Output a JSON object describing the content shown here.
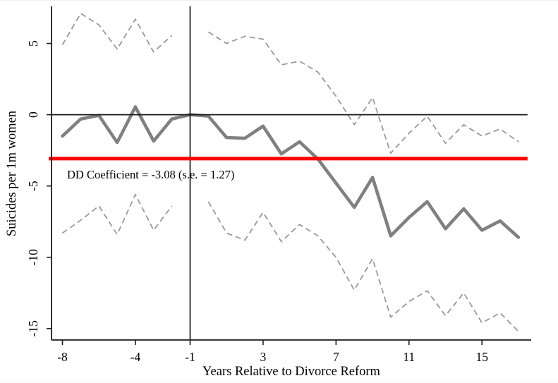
{
  "chart_data": {
    "type": "line",
    "title": "",
    "xlabel": "Years Relative to Divorce Reform",
    "ylabel": "Suicides per 1m women",
    "annotation": "DD Coefficient = -3.08 (s.e. = 1.27)",
    "x_ticks": [
      -8,
      -4,
      -1,
      3,
      7,
      11,
      15
    ],
    "y_ticks": [
      5,
      0,
      -5,
      -10,
      -15
    ],
    "xlim": [
      -8.6,
      17.7
    ],
    "ylim": [
      -15.8,
      7.6
    ],
    "grid": false,
    "legend": "none",
    "reference_lines": {
      "zero_line_y": 0,
      "event_line_x": -1,
      "dd_line_y": -3.08
    },
    "colors": {
      "estimate": "#808080",
      "ci": "#999999",
      "dd_line": "#ff0000",
      "axis": "#1a1a1a"
    },
    "series": [
      {
        "name": "ci-upper-pre",
        "role": "confidence-interval-upper",
        "style": "dashed",
        "x": [
          -8,
          -7,
          -6,
          -5,
          -4,
          -3,
          -2
        ],
        "y": [
          4.9,
          7.1,
          6.3,
          4.6,
          6.7,
          4.4,
          5.55
        ]
      },
      {
        "name": "ci-lower-pre",
        "role": "confidence-interval-lower",
        "style": "dashed",
        "x": [
          -8,
          -7,
          -6,
          -5,
          -4,
          -3,
          -2
        ],
        "y": [
          -8.3,
          -7.4,
          -6.4,
          -8.4,
          -5.6,
          -8.1,
          -6.4
        ]
      },
      {
        "name": "ci-upper-post",
        "role": "confidence-interval-upper",
        "style": "dashed",
        "x": [
          0,
          1,
          2,
          3,
          4,
          5,
          6,
          7,
          8,
          9,
          10,
          11,
          12,
          13,
          14,
          15,
          16,
          17
        ],
        "y": [
          5.8,
          5.0,
          5.5,
          5.3,
          3.5,
          3.75,
          3.0,
          1.3,
          -0.7,
          1.2,
          -2.7,
          -1.3,
          -0.1,
          -2.0,
          -0.7,
          -1.5,
          -1.0,
          -1.9
        ]
      },
      {
        "name": "ci-lower-post",
        "role": "confidence-interval-lower",
        "style": "dashed",
        "x": [
          0,
          1,
          2,
          3,
          4,
          5,
          6,
          7,
          8,
          9,
          10,
          11,
          12,
          13,
          14,
          15,
          16,
          17
        ],
        "y": [
          -6.1,
          -8.3,
          -8.8,
          -6.85,
          -8.9,
          -7.7,
          -8.5,
          -10.0,
          -12.3,
          -10.1,
          -14.2,
          -13.1,
          -12.35,
          -14.1,
          -12.5,
          -14.6,
          -13.9,
          -15.2
        ]
      },
      {
        "name": "point-estimates",
        "role": "estimate",
        "style": "solid",
        "x": [
          -8,
          -7,
          -6,
          -5,
          -4,
          -3,
          -2,
          -1,
          0,
          1,
          2,
          3,
          4,
          5,
          6,
          7,
          8,
          9,
          10,
          11,
          12,
          13,
          14,
          15,
          16,
          17
        ],
        "y": [
          -1.5,
          -0.3,
          -0.05,
          -1.95,
          0.55,
          -1.85,
          -0.3,
          0,
          -0.1,
          -1.6,
          -1.65,
          -0.8,
          -2.75,
          -1.9,
          -3.1,
          -4.8,
          -6.5,
          -4.4,
          -8.5,
          -7.2,
          -6.1,
          -8.0,
          -6.6,
          -8.1,
          -7.45,
          -8.6
        ]
      }
    ]
  }
}
